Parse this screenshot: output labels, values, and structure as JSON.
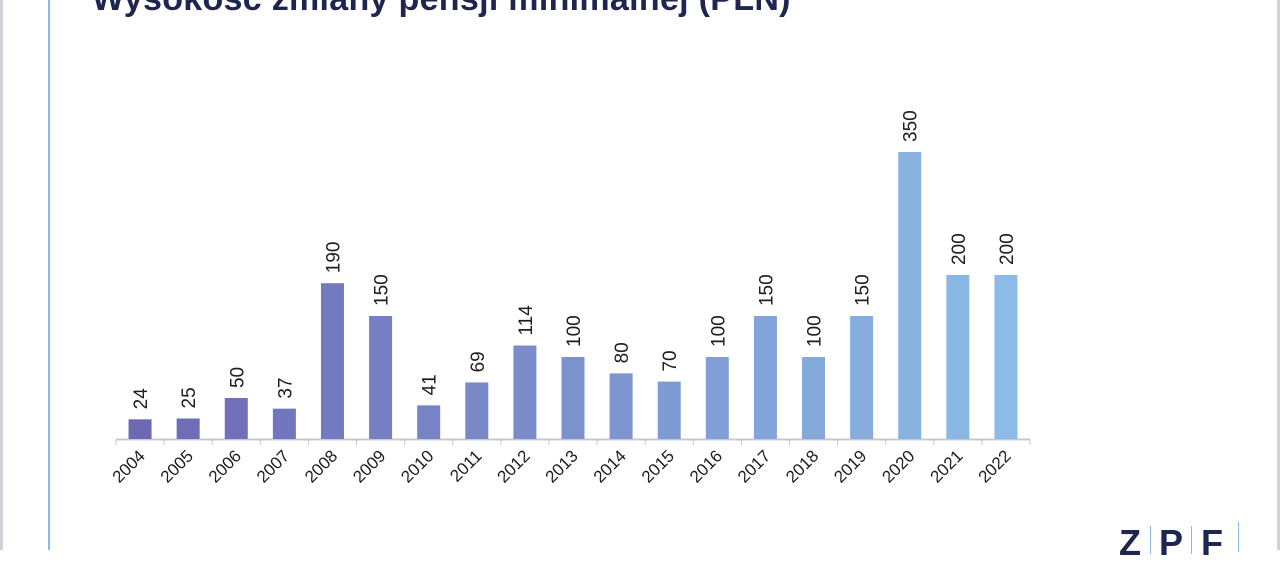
{
  "header": {
    "title": "Wysokość zmiany pensji minimalnej (PLN)"
  },
  "logo": {
    "letters": [
      "Z",
      "P",
      "F"
    ]
  },
  "colors": {
    "start": "#6d68b4",
    "end": "#8bbbe6",
    "axis": "#c8c8c8",
    "text": "#1d1d1d",
    "title": "#1d2550"
  },
  "chart_data": {
    "type": "bar",
    "title": "Wysokość zmiany pensji minimalnej (PLN)",
    "xlabel": "",
    "ylabel": "",
    "categories": [
      "2004",
      "2005",
      "2006",
      "2007",
      "2008",
      "2009",
      "2010",
      "2011",
      "2012",
      "2013",
      "2014",
      "2015",
      "2016",
      "2017",
      "2018",
      "2019",
      "2020",
      "2021",
      "2022"
    ],
    "values": [
      24,
      25,
      50,
      37,
      190,
      150,
      41,
      69,
      114,
      100,
      80,
      70,
      100,
      150,
      100,
      150,
      350,
      200,
      200
    ],
    "data_labels": [
      "24",
      "25",
      "50",
      "37",
      "190",
      "150",
      "41",
      "69",
      "114",
      "100",
      "80",
      "70",
      "100",
      "150",
      "100",
      "150",
      "350",
      "200",
      "200"
    ],
    "ylim": [
      0,
      350
    ],
    "grid": false,
    "legend": "none"
  }
}
